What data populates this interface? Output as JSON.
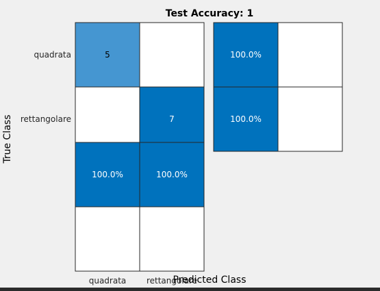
{
  "chart_data": {
    "type": "heatmap",
    "title": "Test Accuracy: 1",
    "xlabel": "Predicted Class",
    "ylabel": "True Class",
    "classes": [
      "quadrata",
      "rettangolare"
    ],
    "confusion_matrix": [
      [
        5,
        0
      ],
      [
        0,
        7
      ]
    ],
    "row_summary": [
      [
        "100.0%",
        ""
      ],
      [
        "100.0%",
        ""
      ]
    ],
    "column_summary": [
      [
        "100.0%",
        "100.0%"
      ],
      [
        "",
        ""
      ]
    ],
    "colors": {
      "diagonal_low": "#4596d1",
      "diagonal_high": "#0072bd",
      "summary_fill": "#0072bd",
      "empty": "#ffffff",
      "border": "#262626",
      "text_dark": "#000000",
      "text_light": "#ffffff",
      "background": "#f0f0f0"
    }
  }
}
